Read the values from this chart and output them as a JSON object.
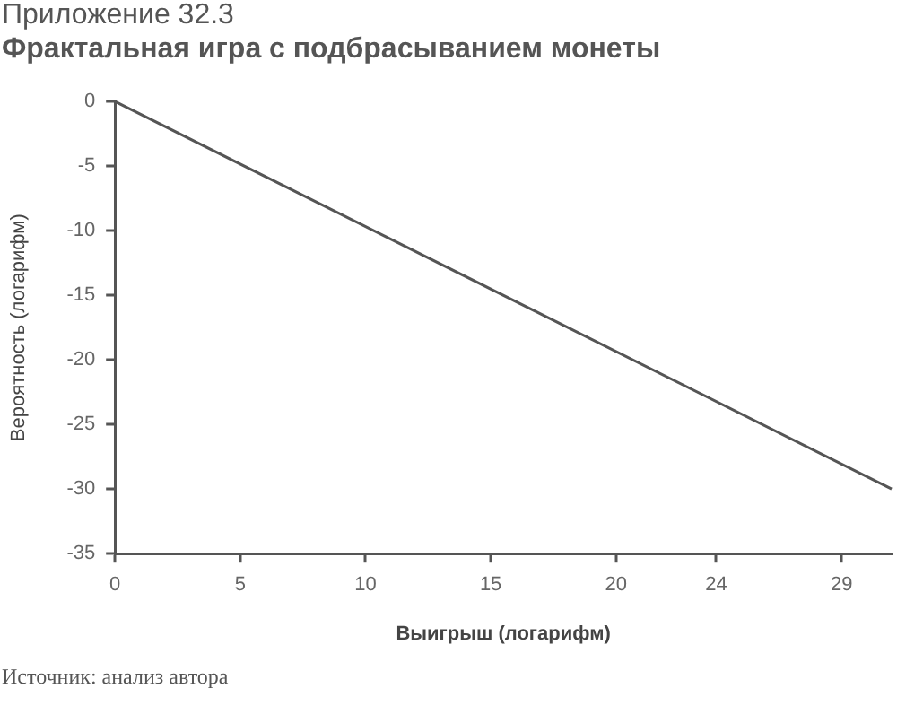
{
  "chart_data": {
    "type": "line",
    "title": "Приложение 32.3",
    "subtitle": "Фрактальная игра с подбрасыванием монеты",
    "xlabel": "Выигрыш (логарифм)",
    "ylabel": "Вероятность (логарифм)",
    "annotations": [
      "Источник: анализ автора"
    ],
    "x": [
      0,
      31
    ],
    "values": [
      0,
      -30
    ],
    "color": "#555555",
    "xlim": [
      0,
      31
    ],
    "xticks": [
      0,
      5,
      10,
      15,
      20,
      24,
      29
    ],
    "ylim": [
      -35,
      0
    ],
    "yticks": [
      -35,
      -30,
      -25,
      -20,
      -15,
      -10,
      -5,
      0
    ],
    "grid": false,
    "legend": false,
    "marker": "none",
    "line_style": "solid"
  }
}
